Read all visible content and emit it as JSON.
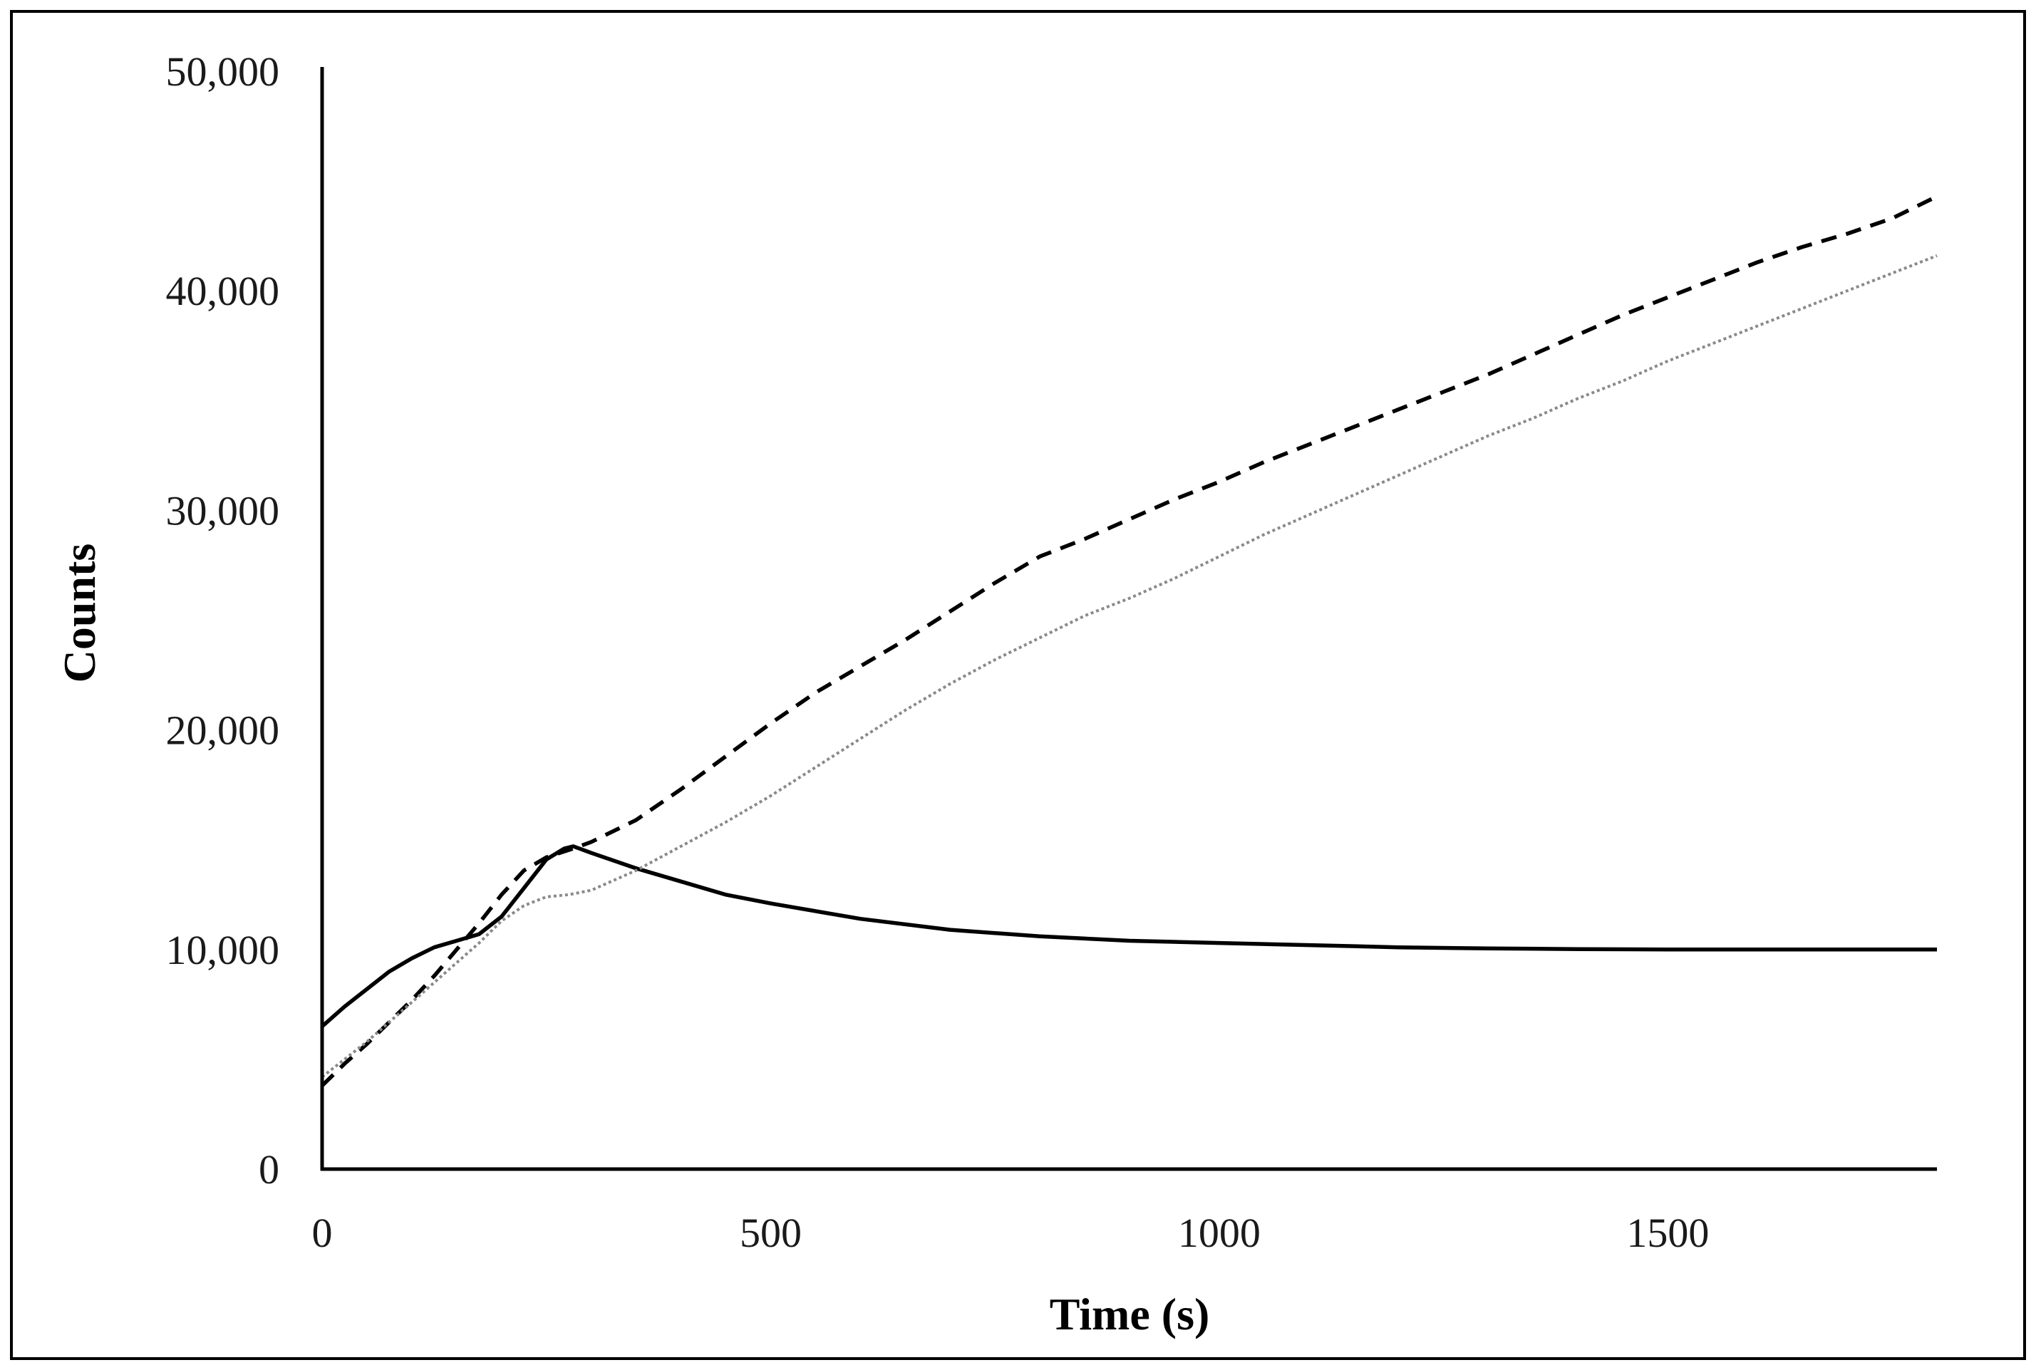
{
  "chart_data": {
    "type": "line",
    "title": "",
    "xlabel": "Time (s)",
    "ylabel": "Counts",
    "xlim": [
      0,
      1800
    ],
    "ylim": [
      0,
      50000
    ],
    "x_ticks": [
      0,
      500,
      1000,
      1500
    ],
    "x_tick_labels": [
      "0",
      "500",
      "1000",
      "1500"
    ],
    "y_ticks": [
      0,
      10000,
      20000,
      30000,
      40000,
      50000
    ],
    "y_tick_labels": [
      "0",
      "10,000",
      "20,000",
      "30,000",
      "40,000",
      "50,000"
    ],
    "grid": false,
    "legend": "none",
    "colors": {
      "solid": "#000000",
      "dashed": "#000000",
      "dotted": "#8a8a8a",
      "axis": "#000000"
    },
    "series": [
      {
        "name": "solid",
        "style": "solid",
        "x": [
          0,
          25,
          50,
          75,
          100,
          125,
          150,
          175,
          200,
          225,
          250,
          270,
          280,
          300,
          350,
          400,
          450,
          500,
          600,
          700,
          800,
          900,
          1000,
          1100,
          1200,
          1300,
          1400,
          1500,
          1600,
          1700,
          1800
        ],
        "y": [
          6500,
          7400,
          8200,
          9000,
          9600,
          10100,
          10400,
          10700,
          11500,
          12800,
          14100,
          14600,
          14700,
          14400,
          13700,
          13100,
          12500,
          12100,
          11400,
          10900,
          10600,
          10400,
          10300,
          10200,
          10100,
          10050,
          10020,
          10000,
          10000,
          10000,
          10000
        ]
      },
      {
        "name": "dashed",
        "style": "dashed",
        "x": [
          0,
          25,
          50,
          75,
          100,
          125,
          150,
          175,
          200,
          225,
          250,
          280,
          300,
          350,
          400,
          450,
          500,
          550,
          600,
          650,
          700,
          750,
          800,
          850,
          900,
          950,
          1000,
          1050,
          1100,
          1150,
          1200,
          1250,
          1300,
          1350,
          1400,
          1450,
          1500,
          1550,
          1600,
          1650,
          1700,
          1750,
          1800
        ],
        "y": [
          3800,
          4800,
          5700,
          6700,
          7700,
          8800,
          10000,
          11200,
          12500,
          13600,
          14200,
          14600,
          14900,
          15900,
          17300,
          18800,
          20300,
          21700,
          22900,
          24100,
          25400,
          26700,
          27900,
          28700,
          29600,
          30500,
          31300,
          32200,
          33000,
          33800,
          34600,
          35400,
          36200,
          37100,
          38000,
          38900,
          39700,
          40500,
          41300,
          42000,
          42600,
          43300,
          44300
        ]
      },
      {
        "name": "dotted",
        "style": "dotted",
        "x": [
          0,
          25,
          50,
          75,
          100,
          125,
          150,
          175,
          200,
          225,
          250,
          275,
          300,
          350,
          400,
          450,
          500,
          550,
          600,
          650,
          700,
          750,
          800,
          850,
          900,
          950,
          1000,
          1050,
          1100,
          1150,
          1200,
          1250,
          1300,
          1350,
          1400,
          1450,
          1500,
          1550,
          1600,
          1650,
          1700,
          1750,
          1800
        ],
        "y": [
          4200,
          5000,
          5800,
          6700,
          7600,
          8500,
          9400,
          10300,
          11300,
          12000,
          12400,
          12500,
          12700,
          13600,
          14700,
          15800,
          17000,
          18300,
          19600,
          20900,
          22100,
          23200,
          24200,
          25200,
          26000,
          26900,
          27900,
          28900,
          29800,
          30700,
          31600,
          32500,
          33400,
          34200,
          35100,
          35900,
          36800,
          37600,
          38400,
          39200,
          40000,
          40800,
          41600
        ]
      }
    ]
  }
}
